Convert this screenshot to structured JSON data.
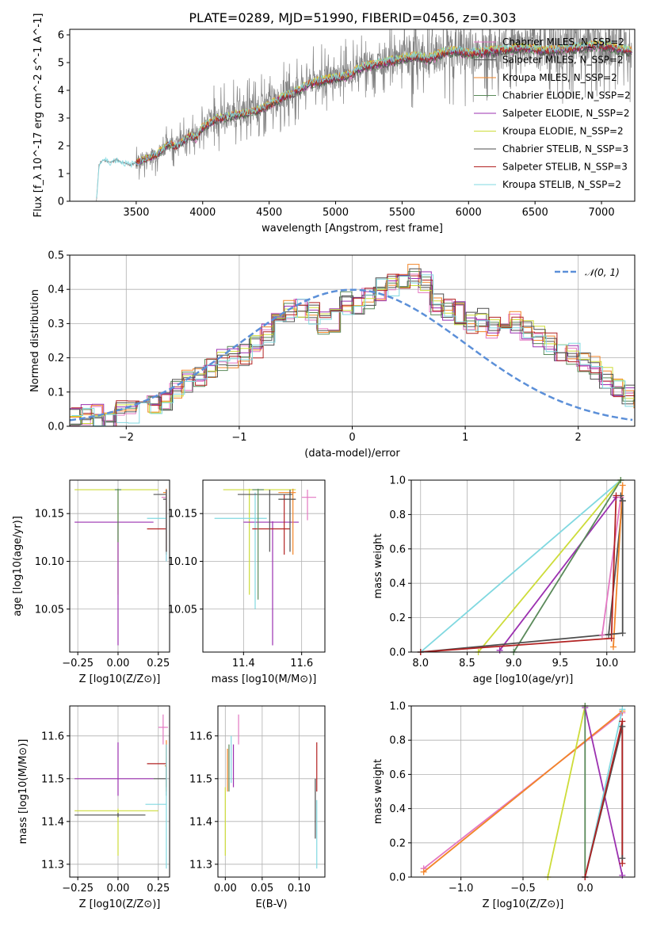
{
  "title": "PLATE=0289, MJD=51990, FIBERID=0456, z=0.303",
  "colors": {
    "Chabrier MILES": "#e377c2",
    "Salpeter MILES": "#555555",
    "Kroupa MILES": "#f28528",
    "Chabrier ELODIE": "#5a8a5a",
    "Salpeter ELODIE": "#9b30b0",
    "Kroupa ELODIE": "#cddc39",
    "Chabrier STELIB": "#4d4d4d",
    "Salpeter STELIB": "#b22222",
    "Kroupa STELIB": "#80d8e0",
    "data": "#808080",
    "normal": "#5b8fd8"
  },
  "chart_data": [
    {
      "id": "spectrum",
      "type": "line",
      "xlabel": "wavelength [Angstrom, rest frame]",
      "ylabel": "Flux [f_λ 10^-17 erg cm^-2 s^-1 A^-1]",
      "xlim": [
        3000,
        7250
      ],
      "ylim": [
        0,
        6.2
      ],
      "xticks": [
        3500,
        4000,
        4500,
        5000,
        5500,
        6000,
        6500,
        7000
      ],
      "yticks": [
        0,
        1,
        2,
        3,
        4,
        5,
        6
      ],
      "grid": false,
      "legend_position": "top-right",
      "data_curve": {
        "x": [
          3200,
          3220,
          3250,
          3300,
          3350,
          3400,
          3450,
          3500,
          3550,
          3600,
          3650,
          3700,
          3750,
          3800,
          3850,
          3900,
          3950,
          4000,
          4100,
          4200,
          4300,
          4400,
          4500,
          4600,
          4700,
          4800,
          4900,
          5000,
          5100,
          5200,
          5300,
          5400,
          5500,
          5600,
          5700,
          5800,
          5900,
          6000,
          6200,
          6400,
          6600,
          6800,
          7000,
          7200
        ],
        "y": [
          0,
          1.3,
          1.5,
          1.4,
          1.5,
          1.4,
          1.3,
          1.4,
          1.5,
          1.6,
          1.7,
          1.9,
          2.1,
          2.0,
          2.2,
          2.4,
          2.3,
          2.7,
          3.0,
          3.1,
          3.2,
          3.3,
          3.5,
          3.8,
          4.0,
          4.3,
          4.4,
          4.5,
          4.6,
          4.9,
          5.0,
          5.1,
          5.2,
          5.3,
          5.2,
          5.4,
          5.5,
          5.4,
          5.5,
          5.6,
          5.5,
          5.6,
          5.7,
          5.5
        ]
      },
      "series": [
        {
          "name": "Chabrier MILES, N_SSP=2"
        },
        {
          "name": "Salpeter MILES, N_SSP=2"
        },
        {
          "name": "Kroupa MILES, N_SSP=2"
        },
        {
          "name": "Chabrier ELODIE, N_SSP=2"
        },
        {
          "name": "Salpeter ELODIE, N_SSP=2"
        },
        {
          "name": "Kroupa ELODIE, N_SSP=2"
        },
        {
          "name": "Chabrier STELIB, N_SSP=3"
        },
        {
          "name": "Salpeter STELIB, N_SSP=3"
        },
        {
          "name": "Kroupa STELIB, N_SSP=2"
        }
      ]
    },
    {
      "id": "residuals",
      "type": "line",
      "xlabel": "(data-model)/error",
      "ylabel": "Normed distribution",
      "xlim": [
        -2.5,
        2.5
      ],
      "ylim": [
        0,
        0.5
      ],
      "xticks": [
        -2,
        -1,
        0,
        1,
        2
      ],
      "yticks": [
        0.0,
        0.1,
        0.2,
        0.3,
        0.4,
        0.5
      ],
      "grid": true,
      "legend": "𝒩(0, 1)",
      "legend_position": "top-right",
      "histogram_heights": [
        0.02,
        0.03,
        0.03,
        0.02,
        0.04,
        0.04,
        0.05,
        0.06,
        0.08,
        0.11,
        0.13,
        0.15,
        0.17,
        0.19,
        0.2,
        0.21,
        0.23,
        0.27,
        0.3,
        0.34,
        0.35,
        0.33,
        0.3,
        0.31,
        0.36,
        0.35,
        0.37,
        0.4,
        0.41,
        0.42,
        0.44,
        0.42,
        0.36,
        0.34,
        0.33,
        0.3,
        0.31,
        0.29,
        0.29,
        0.3,
        0.28,
        0.26,
        0.24,
        0.22,
        0.21,
        0.18,
        0.17,
        0.14,
        0.12,
        0.09,
        0.07,
        0.06,
        0.04,
        0.03,
        0.03
      ],
      "bin_width": 0.1
    },
    {
      "id": "age_vs_Z",
      "type": "scatter",
      "xlabel": "Z [log10(Z/Z⊙)]",
      "ylabel": "age [log10(age/yr)]",
      "xlim": [
        -0.3,
        0.32
      ],
      "ylim": [
        10.005,
        10.185
      ],
      "xticks": [
        -0.25,
        0.0,
        0.25
      ],
      "yticks": [
        10.05,
        10.1,
        10.15
      ],
      "grid": true,
      "points": [
        {
          "model": "Kroupa ELODIE",
          "x": 0.0,
          "y": 10.175,
          "x_lo": -0.27,
          "x_hi": 0.25,
          "y_lo": 10.065,
          "y_hi": 10.176
        },
        {
          "model": "Salpeter ELODIE",
          "x": 0.0,
          "y": 10.141,
          "x_lo": -0.27,
          "x_hi": 0.22,
          "y_lo": 10.012,
          "y_hi": 10.142
        },
        {
          "model": "Chabrier ELODIE",
          "x": 0.0,
          "y": 10.175,
          "x_lo": -0.02,
          "x_hi": 0.02,
          "y_lo": 10.12,
          "y_hi": 10.176
        },
        {
          "model": "Salpeter STELIB",
          "x": 0.3,
          "y": 10.134,
          "x_lo": 0.18,
          "x_hi": 0.3,
          "y_lo": 10.107,
          "y_hi": 10.17
        },
        {
          "model": "Salpeter MILES",
          "x": 0.3,
          "y": 10.17,
          "x_lo": 0.22,
          "x_hi": 0.3,
          "y_lo": 10.11,
          "y_hi": 10.175
        },
        {
          "model": "Kroupa MILES",
          "x": 0.3,
          "y": 10.172,
          "x_lo": 0.28,
          "x_hi": 0.3,
          "y_lo": 10.107,
          "y_hi": 10.176
        },
        {
          "model": "Chabrier MILES",
          "x": 0.3,
          "y": 10.167,
          "x_lo": 0.27,
          "x_hi": 0.3,
          "y_lo": 10.1,
          "y_hi": 10.175
        },
        {
          "model": "Kroupa STELIB",
          "x": 0.3,
          "y": 10.145,
          "x_lo": 0.18,
          "x_hi": 0.3,
          "y_lo": 10.1,
          "y_hi": 10.172
        },
        {
          "model": "Chabrier STELIB",
          "x": 0.3,
          "y": 10.165,
          "x_lo": 0.28,
          "x_hi": 0.3,
          "y_lo": 10.11,
          "y_hi": 10.175
        }
      ]
    },
    {
      "id": "age_vs_mass",
      "type": "scatter",
      "xlabel": "mass [log10(M/M⊙)]",
      "ylabel": "",
      "xlim": [
        11.26,
        11.68
      ],
      "ylim": [
        10.005,
        10.185
      ],
      "xticks": [
        11.4,
        11.6
      ],
      "yticks": [
        10.05,
        10.1,
        10.15
      ],
      "grid": true,
      "points": [
        {
          "model": "Kroupa ELODIE",
          "x": 11.42,
          "y": 10.175,
          "x_lo": 11.33,
          "x_hi": 11.58,
          "y_lo": 10.065,
          "y_hi": 10.176
        },
        {
          "model": "Salpeter ELODIE",
          "x": 11.5,
          "y": 10.141,
          "x_lo": 11.4,
          "x_hi": 11.59,
          "y_lo": 10.012,
          "y_hi": 10.142
        },
        {
          "model": "Kroupa STELIB",
          "x": 11.44,
          "y": 10.145,
          "x_lo": 11.3,
          "x_hi": 11.48,
          "y_lo": 10.05,
          "y_hi": 10.172
        },
        {
          "model": "Salpeter STELIB",
          "x": 11.54,
          "y": 10.134,
          "x_lo": 11.43,
          "x_hi": 11.56,
          "y_lo": 10.107,
          "y_hi": 10.17
        },
        {
          "model": "Salpeter MILES",
          "x": 11.49,
          "y": 10.17,
          "x_lo": 11.38,
          "x_hi": 11.57,
          "y_lo": 10.11,
          "y_hi": 10.175
        },
        {
          "model": "Kroupa MILES",
          "x": 11.57,
          "y": 10.172,
          "x_lo": 11.52,
          "x_hi": 11.58,
          "y_lo": 10.107,
          "y_hi": 10.176
        },
        {
          "model": "Chabrier MILES",
          "x": 11.62,
          "y": 10.167,
          "x_lo": 11.6,
          "x_hi": 11.65,
          "y_lo": 10.143,
          "y_hi": 10.175
        },
        {
          "model": "Chabrier STELIB",
          "x": 11.56,
          "y": 10.165,
          "x_lo": 11.52,
          "x_hi": 11.58,
          "y_lo": 10.11,
          "y_hi": 10.175
        },
        {
          "model": "Chabrier ELODIE",
          "x": 11.45,
          "y": 10.175,
          "x_lo": 11.43,
          "x_hi": 11.47,
          "y_lo": 10.06,
          "y_hi": 10.176
        }
      ]
    },
    {
      "id": "weight_vs_age",
      "type": "line",
      "xlabel": "age [log10(age/yr)]",
      "ylabel": "mass weight",
      "xlim": [
        7.9,
        10.3
      ],
      "ylim": [
        0,
        1
      ],
      "xticks": [
        8.0,
        8.5,
        9.0,
        9.5,
        10.0
      ],
      "yticks": [
        0.0,
        0.2,
        0.4,
        0.6,
        0.8,
        1.0
      ],
      "grid": true,
      "series": [
        {
          "name": "Kroupa STELIB",
          "x": [
            8.0,
            10.15
          ],
          "y": [
            0.0,
            1.0
          ]
        },
        {
          "name": "Kroupa ELODIE",
          "x": [
            8.62,
            10.15
          ],
          "y": [
            0.0,
            1.0
          ]
        },
        {
          "name": "Salpeter ELODIE",
          "x": [
            8.85,
            10.1
          ],
          "y": [
            0.01,
            0.9
          ]
        },
        {
          "name": "Chabrier ELODIE",
          "x": [
            9.0,
            10.15
          ],
          "y": [
            0.0,
            1.0
          ]
        },
        {
          "name": "Chabrier MILES",
          "x": [
            9.95,
            10.15
          ],
          "y": [
            0.1,
            0.9
          ]
        },
        {
          "name": "Salpeter MILES",
          "x": [
            10.02,
            10.17
          ],
          "y": [
            0.1,
            0.88
          ]
        },
        {
          "name": "Kroupa MILES",
          "x": [
            10.07,
            10.17
          ],
          "y": [
            0.03,
            0.97
          ]
        },
        {
          "name": "Chabrier STELIB",
          "x": [
            8.0,
            10.17,
            10.17,
            10.15
          ],
          "y": [
            0.0,
            0.11,
            0.88,
            0.91
          ]
        },
        {
          "name": "Salpeter STELIB",
          "x": [
            8.0,
            10.05,
            10.1
          ],
          "y": [
            0.0,
            0.08,
            0.91
          ]
        }
      ]
    },
    {
      "id": "mass_vs_Z",
      "type": "scatter",
      "xlabel": "Z [log10(Z/Z⊙)]",
      "ylabel": "mass [log10(M/M⊙)]",
      "xlim": [
        -0.3,
        0.32
      ],
      "ylim": [
        11.27,
        11.67
      ],
      "xticks": [
        -0.25,
        0.0,
        0.25
      ],
      "yticks": [
        11.3,
        11.4,
        11.5,
        11.6
      ],
      "grid": true,
      "points": [
        {
          "model": "Salpeter ELODIE",
          "x": 0.0,
          "y": 11.5,
          "x_lo": -0.27,
          "x_hi": 0.22,
          "y_lo": 11.46,
          "y_hi": 11.585
        },
        {
          "model": "Kroupa ELODIE",
          "x": 0.0,
          "y": 11.425,
          "x_lo": -0.27,
          "x_hi": 0.25,
          "y_lo": 11.32,
          "y_hi": 11.43
        },
        {
          "model": "Chabrier STELIB",
          "x": 0.0,
          "y": 11.415,
          "x_lo": -0.27,
          "x_hi": 0.17,
          "y_lo": 11.41,
          "y_hi": 11.42
        },
        {
          "model": "Chabrier MILES",
          "x": 0.28,
          "y": 11.62,
          "x_lo": 0.25,
          "x_hi": 0.31,
          "y_lo": 11.58,
          "y_hi": 11.65
        },
        {
          "model": "Salpeter STELIB",
          "x": 0.3,
          "y": 11.535,
          "x_lo": 0.18,
          "x_hi": 0.3,
          "y_lo": 11.48,
          "y_hi": 11.58
        },
        {
          "model": "Kroupa MILES",
          "x": 0.3,
          "y": 11.53,
          "x_lo": 0.29,
          "x_hi": 0.3,
          "y_lo": 11.47,
          "y_hi": 11.59
        },
        {
          "model": "Salpeter MILES",
          "x": 0.3,
          "y": 11.5,
          "x_lo": 0.22,
          "x_hi": 0.3,
          "y_lo": 11.46,
          "y_hi": 11.53
        },
        {
          "model": "Kroupa STELIB",
          "x": 0.3,
          "y": 11.44,
          "x_lo": 0.17,
          "x_hi": 0.3,
          "y_lo": 11.29,
          "y_hi": 11.58
        }
      ]
    },
    {
      "id": "mass_vs_EBV",
      "type": "scatter",
      "xlabel": "E(B-V)",
      "ylabel": "",
      "xlim": [
        -0.01,
        0.135
      ],
      "ylim": [
        11.27,
        11.67
      ],
      "xticks": [
        0.0,
        0.05,
        0.1
      ],
      "yticks": [
        11.3,
        11.4,
        11.5,
        11.6
      ],
      "grid": true,
      "points": [
        {
          "model": "Kroupa ELODIE",
          "x": 0.0,
          "y": 11.42,
          "y_lo": 11.32,
          "y_hi": 11.48
        },
        {
          "model": "Kroupa MILES",
          "x": 0.003,
          "y": 11.52,
          "y_lo": 11.47,
          "y_hi": 11.57
        },
        {
          "model": "Chabrier ELODIE",
          "x": 0.005,
          "y": 11.53,
          "y_lo": 11.47,
          "y_hi": 11.58
        },
        {
          "model": "Kroupa STELIB",
          "x": 0.008,
          "y": 11.55,
          "y_lo": 11.49,
          "y_hi": 11.6
        },
        {
          "model": "Salpeter ELODIE",
          "x": 0.011,
          "y": 11.53,
          "y_lo": 11.48,
          "y_hi": 11.58
        },
        {
          "model": "Chabrier MILES",
          "x": 0.018,
          "y": 11.62,
          "y_lo": 11.58,
          "y_hi": 11.65
        },
        {
          "model": "Salpeter STELIB",
          "x": 0.124,
          "y": 11.53,
          "y_lo": 11.47,
          "y_hi": 11.585
        },
        {
          "model": "Chabrier STELIB",
          "x": 0.122,
          "y": 11.41,
          "y_lo": 11.36,
          "y_hi": 11.5
        },
        {
          "model": "Kroupa STELIB",
          "x": 0.124,
          "y": 11.38,
          "y_lo": 11.29,
          "y_hi": 11.45
        }
      ]
    },
    {
      "id": "weight_vs_Z",
      "type": "line",
      "xlabel": "Z [log10(Z/Z⊙)]",
      "ylabel": "mass weight",
      "xlim": [
        -1.4,
        0.4
      ],
      "ylim": [
        0,
        1
      ],
      "xticks": [
        -1.0,
        -0.5,
        0.0
      ],
      "yticks": [
        0.0,
        0.2,
        0.4,
        0.6,
        0.8,
        1.0
      ],
      "grid": true,
      "series": [
        {
          "name": "Chabrier MILES",
          "x": [
            -1.3,
            0.3
          ],
          "y": [
            0.05,
            0.96
          ]
        },
        {
          "name": "Kroupa MILES",
          "x": [
            -1.3,
            0.3
          ],
          "y": [
            0.03,
            0.97
          ]
        },
        {
          "name": "Kroupa ELODIE",
          "x": [
            -0.3,
            0.0
          ],
          "y": [
            0.0,
            1.0
          ]
        },
        {
          "name": "Salpeter ELODIE",
          "x": [
            0.0,
            0.3
          ],
          "y": [
            0.99,
            0.01
          ]
        },
        {
          "name": "Chabrier ELODIE",
          "x": [
            0.0,
            0.0
          ],
          "y": [
            0.0,
            1.0
          ]
        },
        {
          "name": "Kroupa STELIB",
          "x": [
            0.0,
            0.3
          ],
          "y": [
            0.0,
            0.98
          ]
        },
        {
          "name": "Chabrier STELIB",
          "x": [
            0.0,
            0.3,
            0.3
          ],
          "y": [
            0.0,
            0.88,
            0.11
          ]
        },
        {
          "name": "Salpeter STELIB",
          "x": [
            0.0,
            0.3,
            0.3
          ],
          "y": [
            0.0,
            0.91,
            0.08
          ]
        }
      ]
    }
  ]
}
